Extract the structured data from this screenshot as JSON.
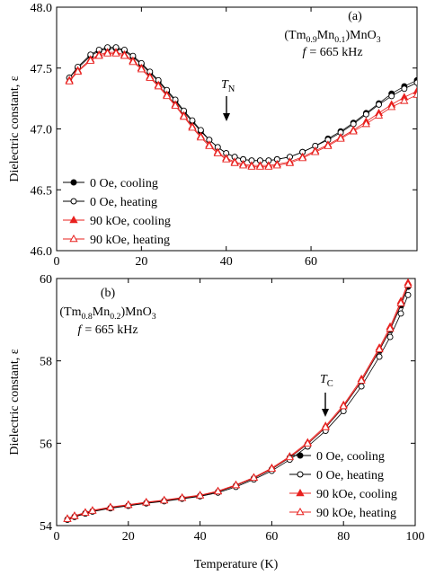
{
  "chart_data": [
    {
      "type": "scatter",
      "ylabel": "Dielectric constant, ε",
      "legend": "lower left",
      "annotations": {
        "panel": "(a)",
        "formula": [
          "(Tm",
          "0.9",
          "Mn",
          "0.1",
          ")MnO",
          "3"
        ],
        "frequency": [
          "f",
          "= 665 kHz"
        ],
        "transition": [
          "T",
          "N"
        ]
      },
      "xlim": [
        0,
        85
      ],
      "xticks": [
        0,
        20,
        40,
        60
      ],
      "ylim": [
        46,
        48
      ],
      "yticks": [
        {
          "value": 46,
          "label": "46.0"
        },
        46.5,
        {
          "value": 47,
          "label": "47.0"
        },
        47.5,
        {
          "value": 48,
          "label": "48.0"
        }
      ],
      "x": [
        3,
        5,
        8,
        10,
        12,
        14,
        16,
        18,
        20,
        22,
        24,
        26,
        28,
        30,
        32,
        34,
        36,
        38,
        40,
        42,
        44,
        46,
        48,
        50,
        52,
        55,
        58,
        61,
        64,
        67,
        70,
        73,
        76,
        79,
        82,
        85
      ],
      "series": [
        {
          "name": "0 Oe, cooling",
          "color": "#000000",
          "marker": "circle",
          "open": false,
          "values": [
            47.42,
            47.5,
            47.6,
            47.64,
            47.66,
            47.66,
            47.64,
            47.59,
            47.53,
            47.46,
            47.39,
            47.31,
            47.23,
            47.14,
            47.06,
            46.98,
            46.91,
            46.85,
            46.8,
            46.77,
            46.75,
            46.74,
            46.74,
            46.74,
            46.75,
            46.77,
            46.81,
            46.86,
            46.92,
            46.98,
            47.05,
            47.13,
            47.21,
            47.29,
            47.35,
            47.4
          ]
        },
        {
          "name": "0 Oe, heating",
          "color": "#000000",
          "marker": "circle",
          "open": true,
          "values": [
            47.42,
            47.51,
            47.61,
            47.65,
            47.67,
            47.67,
            47.65,
            47.6,
            47.54,
            47.47,
            47.4,
            47.32,
            47.24,
            47.15,
            47.07,
            46.99,
            46.91,
            46.85,
            46.8,
            46.77,
            46.75,
            46.74,
            46.74,
            46.74,
            46.75,
            46.77,
            46.81,
            46.86,
            46.91,
            46.97,
            47.04,
            47.12,
            47.2,
            47.27,
            47.33,
            47.38
          ]
        },
        {
          "name": "90 kOe, cooling",
          "color": "#e8201e",
          "marker": "triangle",
          "open": false,
          "values": [
            47.4,
            47.48,
            47.57,
            47.61,
            47.63,
            47.63,
            47.61,
            47.56,
            47.5,
            47.43,
            47.36,
            47.28,
            47.2,
            47.11,
            47.02,
            46.94,
            46.87,
            46.81,
            46.76,
            46.73,
            46.71,
            46.7,
            46.7,
            46.7,
            46.71,
            46.73,
            46.77,
            46.82,
            46.87,
            46.93,
            46.99,
            47.06,
            47.13,
            47.2,
            47.26,
            47.31
          ]
        },
        {
          "name": "90 kOe, heating",
          "color": "#e8201e",
          "marker": "triangle",
          "open": true,
          "values": [
            47.39,
            47.47,
            47.56,
            47.6,
            47.62,
            47.62,
            47.6,
            47.55,
            47.49,
            47.42,
            47.35,
            47.27,
            47.19,
            47.1,
            47.01,
            46.93,
            46.86,
            46.8,
            46.75,
            46.72,
            46.7,
            46.69,
            46.69,
            46.69,
            46.7,
            46.72,
            46.76,
            46.81,
            46.86,
            46.92,
            46.98,
            47.04,
            47.11,
            47.18,
            47.23,
            47.28
          ]
        }
      ]
    },
    {
      "type": "scatter",
      "xlabel": "Temperature (K)",
      "ylabel": "Dielectric constant, ε",
      "legend": "lower right",
      "annotations": {
        "panel": "(b)",
        "formula": [
          "(Tm",
          "0.8",
          "Mn",
          "0.2",
          ")MnO",
          "3"
        ],
        "frequency": [
          "f",
          "= 665 kHz"
        ],
        "transition": [
          "T",
          "C"
        ]
      },
      "xlim": [
        0,
        100
      ],
      "xticks": [
        0,
        20,
        40,
        60,
        80,
        100
      ],
      "ylim": [
        54,
        60
      ],
      "yticks": [
        54,
        56,
        58,
        60
      ],
      "x": [
        3,
        5,
        8,
        10,
        15,
        20,
        25,
        30,
        35,
        40,
        45,
        50,
        55,
        60,
        65,
        70,
        75,
        80,
        85,
        90,
        93,
        96,
        98
      ],
      "series": [
        {
          "name": "0 Oe, cooling",
          "color": "#000000",
          "marker": "circle",
          "open": false,
          "values": [
            54.15,
            54.22,
            54.3,
            54.35,
            54.43,
            54.49,
            54.55,
            54.6,
            54.66,
            54.72,
            54.82,
            54.97,
            55.15,
            55.37,
            55.65,
            55.98,
            56.38,
            56.88,
            57.5,
            58.25,
            58.75,
            59.35,
            59.8
          ]
        },
        {
          "name": "0 Oe, heating",
          "color": "#000000",
          "marker": "circle",
          "open": true,
          "values": [
            54.14,
            54.21,
            54.29,
            54.34,
            54.42,
            54.48,
            54.54,
            54.59,
            54.65,
            54.71,
            54.8,
            54.94,
            55.12,
            55.33,
            55.6,
            55.92,
            56.3,
            56.78,
            57.38,
            58.1,
            58.58,
            59.15,
            59.6
          ]
        },
        {
          "name": "90 kOe, cooling",
          "color": "#e8201e",
          "marker": "triangle",
          "open": false,
          "values": [
            54.17,
            54.24,
            54.32,
            54.37,
            54.45,
            54.51,
            54.57,
            54.62,
            54.68,
            54.74,
            54.84,
            54.99,
            55.17,
            55.4,
            55.68,
            56.02,
            56.42,
            56.93,
            57.56,
            58.32,
            58.83,
            59.45,
            59.9
          ]
        },
        {
          "name": "90 kOe, heating",
          "color": "#e8201e",
          "marker": "triangle",
          "open": true,
          "values": [
            54.16,
            54.23,
            54.31,
            54.36,
            54.44,
            54.5,
            54.56,
            54.61,
            54.67,
            54.73,
            54.83,
            54.98,
            55.16,
            55.38,
            55.66,
            55.99,
            56.39,
            56.9,
            57.52,
            58.28,
            58.78,
            59.4,
            59.85
          ]
        }
      ]
    }
  ]
}
